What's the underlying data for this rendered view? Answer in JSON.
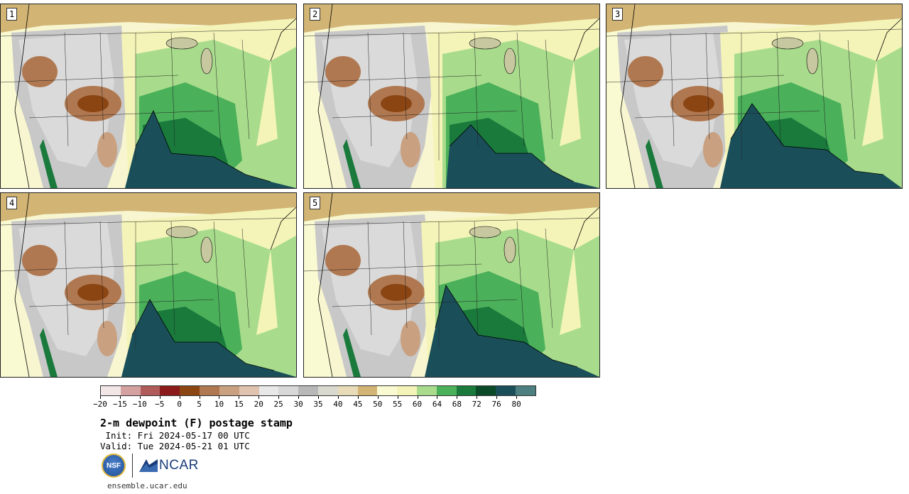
{
  "panels": [
    {
      "label": "1"
    },
    {
      "label": "2"
    },
    {
      "label": "3"
    },
    {
      "label": "4"
    },
    {
      "label": "5"
    }
  ],
  "colorbar": {
    "colors": [
      "#f2e6e6",
      "#d4a0a0",
      "#b05a5a",
      "#8b1a1a",
      "#8b4513",
      "#b07850",
      "#c9a080",
      "#dfc3ae",
      "#e8e8e8",
      "#d8d8d8",
      "#b8b8b8",
      "#d9d9cf",
      "#e8dcb8",
      "#d2b575",
      "#fafad2",
      "#f4f4b8",
      "#a8dc8c",
      "#4bb05a",
      "#1a7a3c",
      "#0a4a28",
      "#1a4f5a",
      "#4e7f80"
    ],
    "tick_labels": [
      "−20",
      "−15",
      "−10",
      "−5",
      "0",
      "5",
      "10",
      "15",
      "20",
      "25",
      "30",
      "35",
      "40",
      "45",
      "50",
      "55",
      "60",
      "64",
      "68",
      "72",
      "76",
      "80"
    ]
  },
  "title": "2-m dewpoint (F) postage stamp",
  "init_line": " Init: Fri 2024-05-17 00 UTC",
  "valid_line": "Valid: Tue 2024-05-21 01 UTC",
  "logos": {
    "nsf_text": "NSF",
    "ncar_text": "NCAR"
  },
  "footer_url": "ensemble.ucar.edu"
}
